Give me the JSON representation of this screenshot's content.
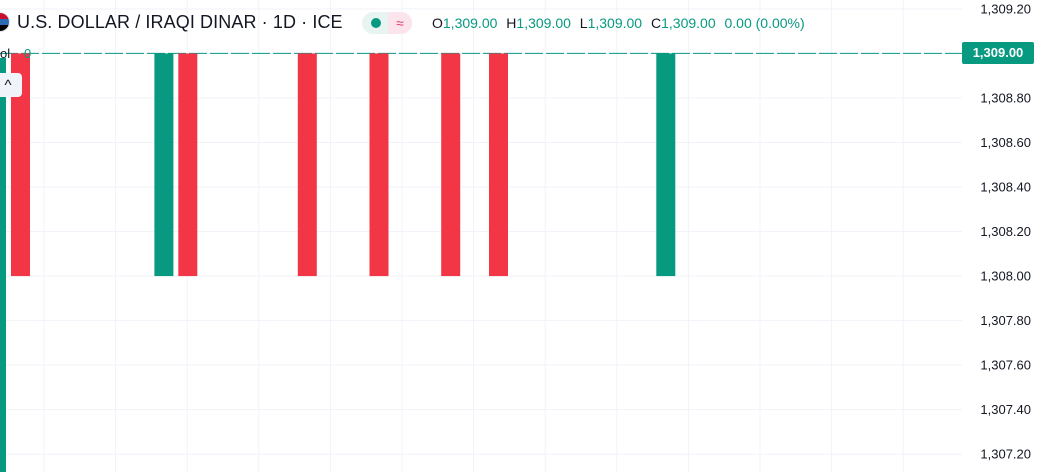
{
  "header": {
    "symbol": "U.S. DOLLAR / IRAQI DINAR · 1D · ICE",
    "status_icon": "market-closed-dot",
    "wave_icon": "≈",
    "ohlc": {
      "o_label": "O",
      "o_value": "1,309.00",
      "h_label": "H",
      "h_value": "1,309.00",
      "l_label": "L",
      "l_value": "1,309.00",
      "c_label": "C",
      "c_value": "1,309.00",
      "change": "0.00 (0.00%)"
    }
  },
  "volume": {
    "label": "ol",
    "value": "0"
  },
  "collapse_icon": "^",
  "current_price_label": "1,309.00",
  "colors": {
    "up": "#089981",
    "down": "#f23645",
    "grid": "#f0f3fa",
    "text": "#131722"
  },
  "chart_data": {
    "type": "bar",
    "title": "U.S. DOLLAR / IRAQI DINAR · 1D · ICE",
    "ylim": [
      1307.12,
      1309.24
    ],
    "y_ticks": [
      "1,309.20",
      "1,309.00",
      "1,308.80",
      "1,308.60",
      "1,308.40",
      "1,308.20",
      "1,308.00",
      "1,307.80",
      "1,307.60",
      "1,307.40",
      "1,307.20"
    ],
    "y_tick_values": [
      1309.2,
      1309.0,
      1308.8,
      1308.6,
      1308.4,
      1308.2,
      1308.0,
      1307.8,
      1307.6,
      1307.4,
      1307.2
    ],
    "baseline_price": 1309.0,
    "candles": [
      {
        "index": 0,
        "open": 1309.0,
        "close": 1308.0,
        "direction": "down"
      },
      {
        "index": 6,
        "open": 1308.0,
        "close": 1309.0,
        "direction": "up"
      },
      {
        "index": 7,
        "open": 1309.0,
        "close": 1308.0,
        "direction": "down"
      },
      {
        "index": 12,
        "open": 1309.0,
        "close": 1308.0,
        "direction": "down"
      },
      {
        "index": 15,
        "open": 1309.0,
        "close": 1308.0,
        "direction": "down"
      },
      {
        "index": 18,
        "open": 1309.0,
        "close": 1308.0,
        "direction": "down"
      },
      {
        "index": 20,
        "open": 1309.0,
        "close": 1308.0,
        "direction": "down"
      },
      {
        "index": 27,
        "open": 1308.0,
        "close": 1309.0,
        "direction": "up"
      }
    ]
  }
}
